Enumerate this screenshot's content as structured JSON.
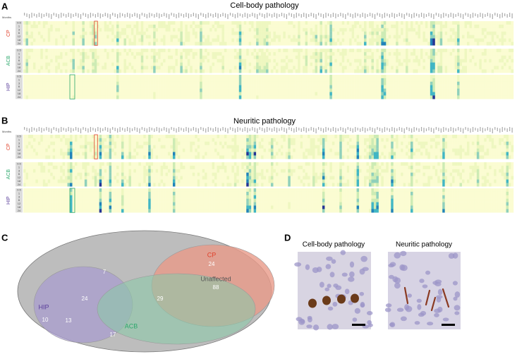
{
  "panel_a": {
    "letter": "A",
    "title": "Cell-body pathology"
  },
  "panel_b": {
    "letter": "B",
    "title": "Neuritic pathology"
  },
  "months_label": "Months",
  "months": [
    0.5,
    1,
    3,
    6,
    12,
    18,
    24
  ],
  "regions": [
    {
      "name": "CP",
      "color": "#e0402a"
    },
    {
      "name": "ACB",
      "color": "#2ca86c"
    },
    {
      "name": "HIP",
      "color": "#5a3d9a"
    }
  ],
  "panel_c": {
    "letter": "C",
    "cp": "CP",
    "acb": "ACB",
    "hip": "HIP",
    "unaffected": "Unaffected",
    "counts": {
      "cp_only": 24,
      "unaffected": 88,
      "cp_hip": 7,
      "all": 24,
      "cp_acb": 29,
      "hip_only": 10,
      "hip_acb": 13,
      "acb_only": 17
    }
  },
  "panel_d": {
    "letter": "D",
    "left": "Cell-body pathology",
    "right": "Neuritic pathology"
  }
}
